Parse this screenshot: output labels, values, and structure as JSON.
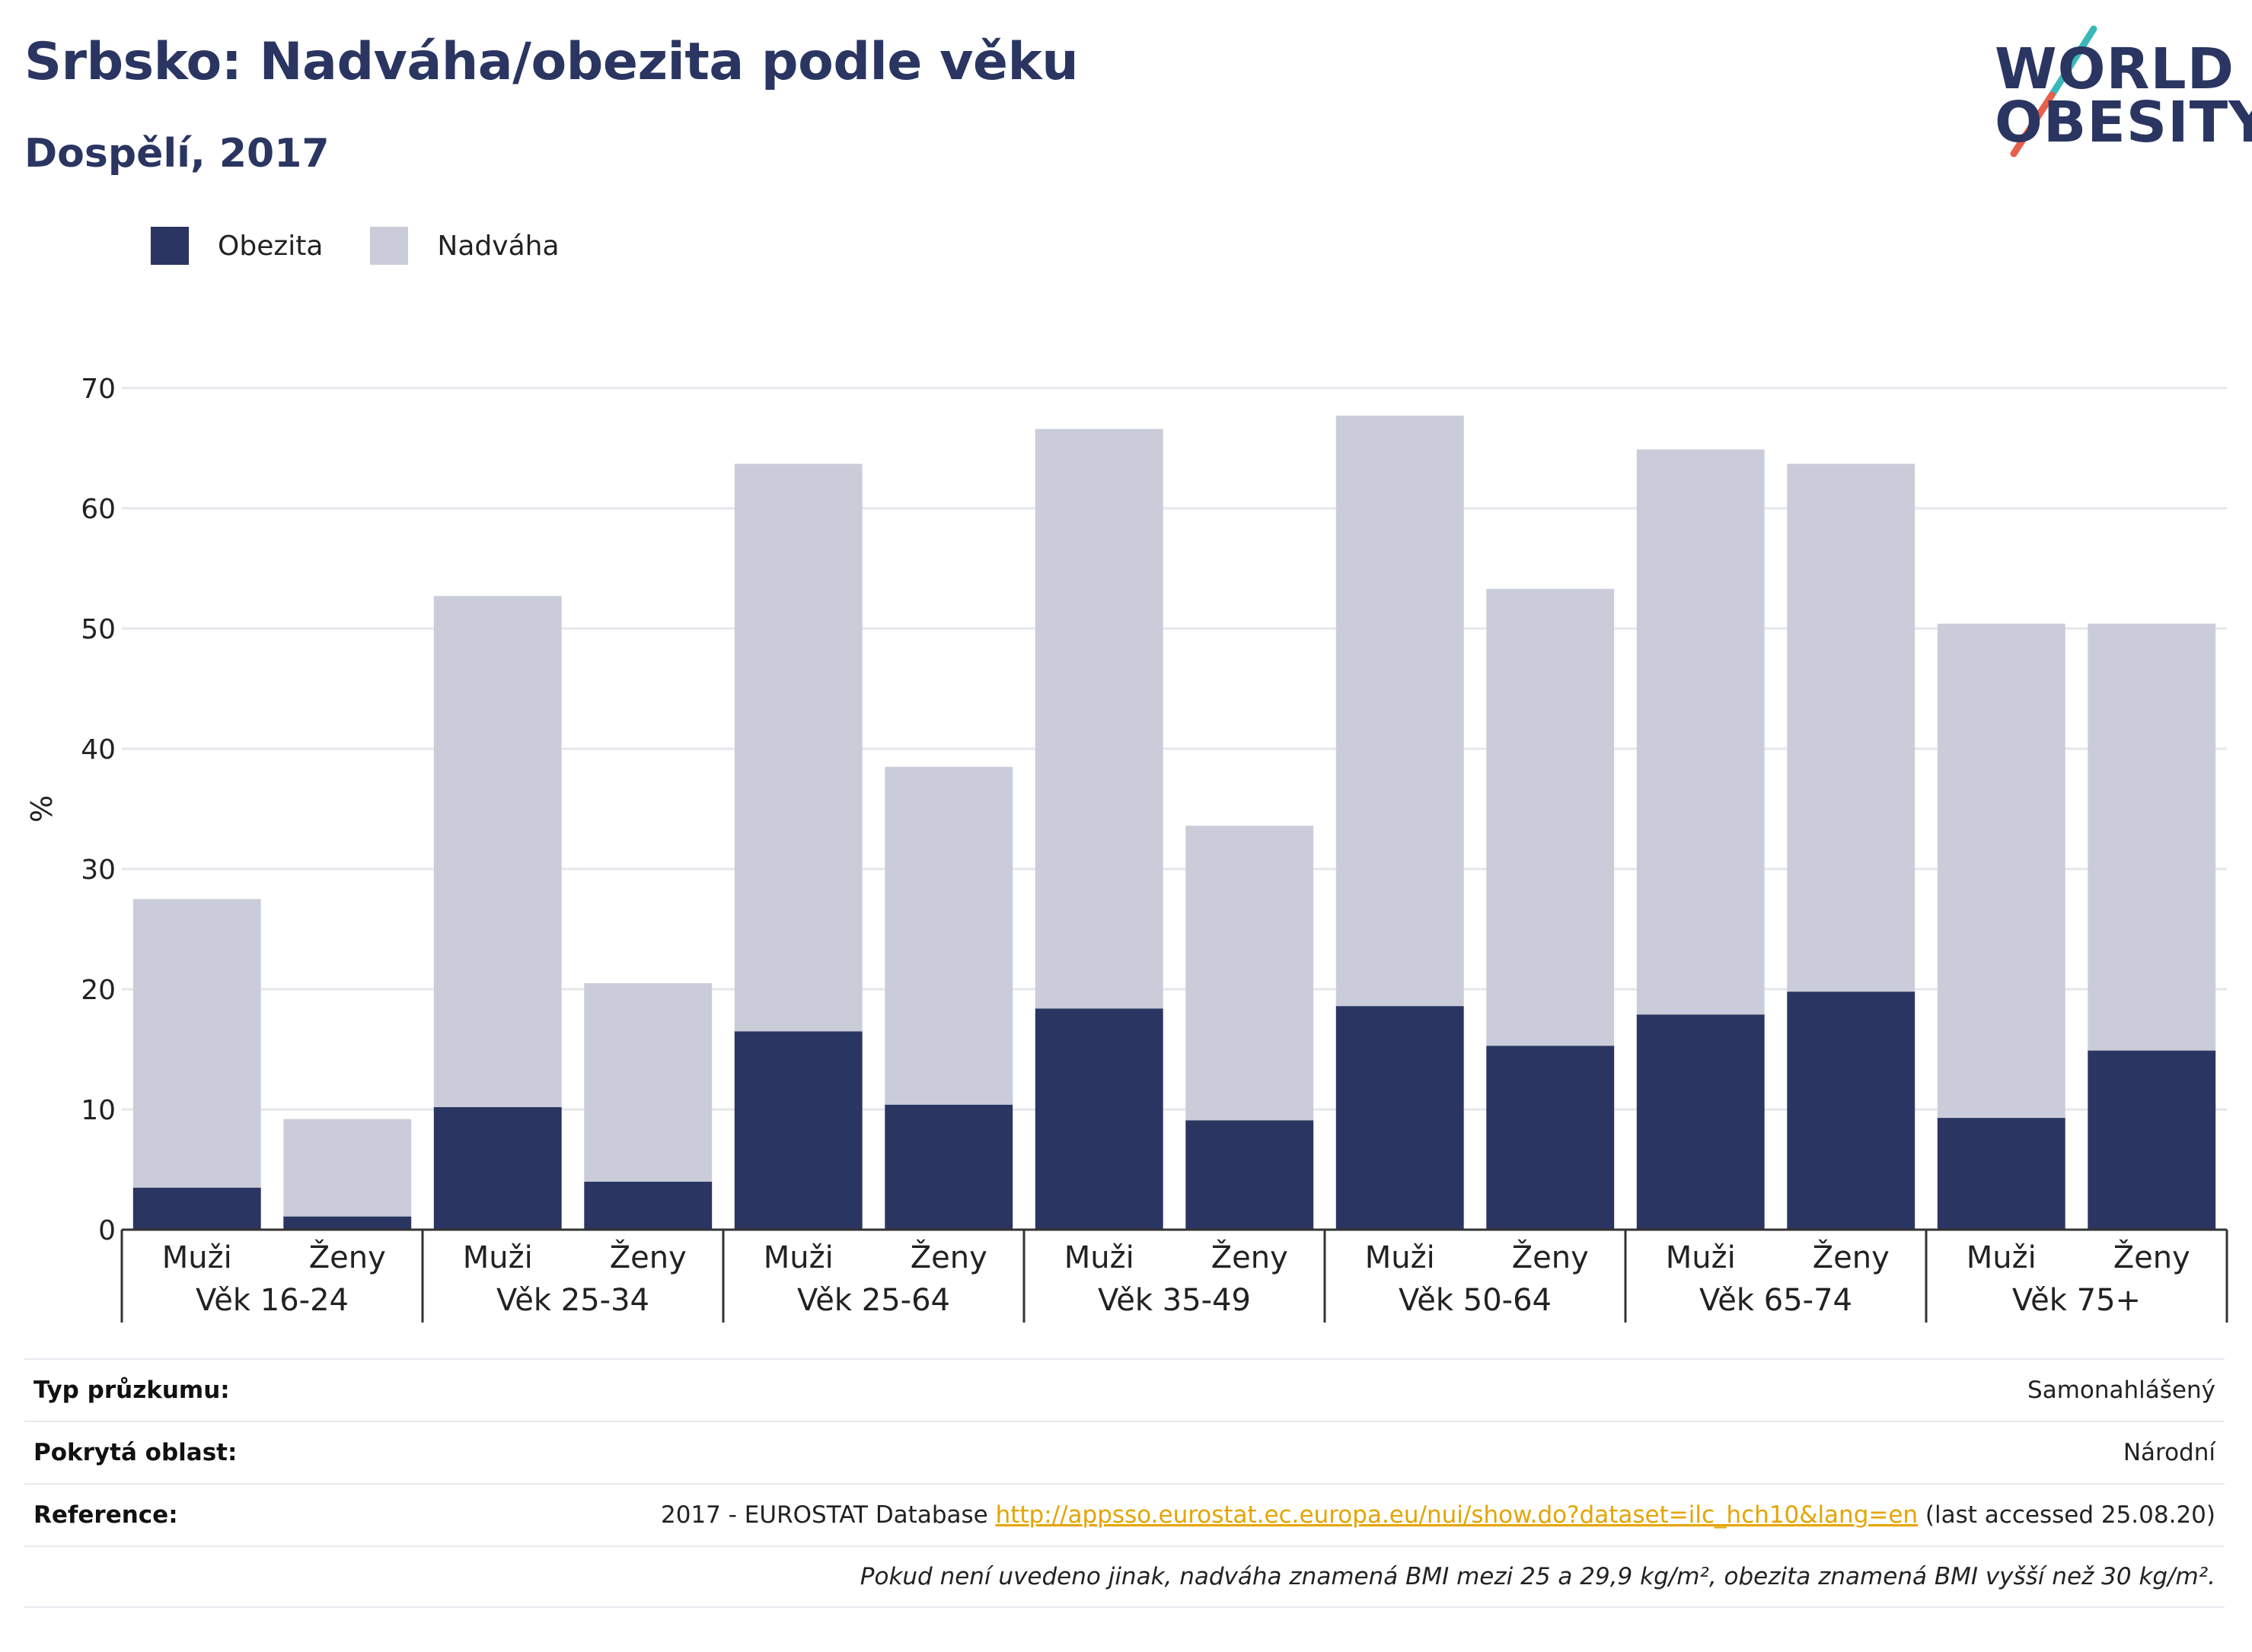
{
  "header": {
    "title": "Srbsko: Nadváha/obezita podle věku",
    "subtitle": "Dospělí, 2017"
  },
  "logo": {
    "line1": "WORLD",
    "line2": "OBESITY",
    "accent_teal": "#3ab8b8",
    "accent_red": "#e8604c"
  },
  "colors": {
    "obezita": "#2a3561",
    "nadvaha": "#cacdd9",
    "grid": "#e6e7ec",
    "axis": "#333333"
  },
  "chart_data": {
    "type": "bar",
    "stacked": true,
    "ylabel": "%",
    "ylim": [
      0,
      70
    ],
    "yticks": [
      0,
      10,
      20,
      30,
      40,
      50,
      60,
      70
    ],
    "grid": true,
    "legend_position": "top-left",
    "groups": [
      {
        "label": "Věk 16-24",
        "categories": [
          "Muži",
          "Ženy"
        ]
      },
      {
        "label": "Věk 25-34",
        "categories": [
          "Muži",
          "Ženy"
        ]
      },
      {
        "label": "Věk 25-64",
        "categories": [
          "Muži",
          "Ženy"
        ]
      },
      {
        "label": "Věk 35-49",
        "categories": [
          "Muži",
          "Ženy"
        ]
      },
      {
        "label": "Věk 50-64",
        "categories": [
          "Muži",
          "Ženy"
        ]
      },
      {
        "label": "Věk 65-74",
        "categories": [
          "Muži",
          "Ženy"
        ]
      },
      {
        "label": "Věk 75+",
        "categories": [
          "Muži",
          "Ženy"
        ]
      }
    ],
    "series": [
      {
        "name": "Obezita",
        "values": [
          3.5,
          1.1,
          10.2,
          4.0,
          16.5,
          10.4,
          18.4,
          9.1,
          18.6,
          15.3,
          17.9,
          19.8,
          9.3,
          14.9
        ]
      },
      {
        "name": "Nadváha",
        "values": [
          24.0,
          8.1,
          42.5,
          16.5,
          47.2,
          28.1,
          48.2,
          24.5,
          49.1,
          38.0,
          47.0,
          43.9,
          41.1,
          35.5
        ]
      }
    ]
  },
  "footer": {
    "rows": [
      {
        "label": "Typ průzkumu:",
        "value": "Samonahlášený"
      },
      {
        "label": "Pokrytá oblast:",
        "value": "Národní"
      }
    ],
    "reference": {
      "label": "Reference:",
      "prefix": "2017 - EUROSTAT Database ",
      "link": "http://appsso.eurostat.ec.europa.eu/nui/show.do?dataset=ilc_hch10&lang=en",
      "suffix": " (last accessed 25.08.20)"
    },
    "note": "Pokud není uvedeno jinak, nadváha znamená BMI mezi 25 a 29,9 kg/m², obezita znamená BMI vyšší než 30 kg/m²."
  }
}
